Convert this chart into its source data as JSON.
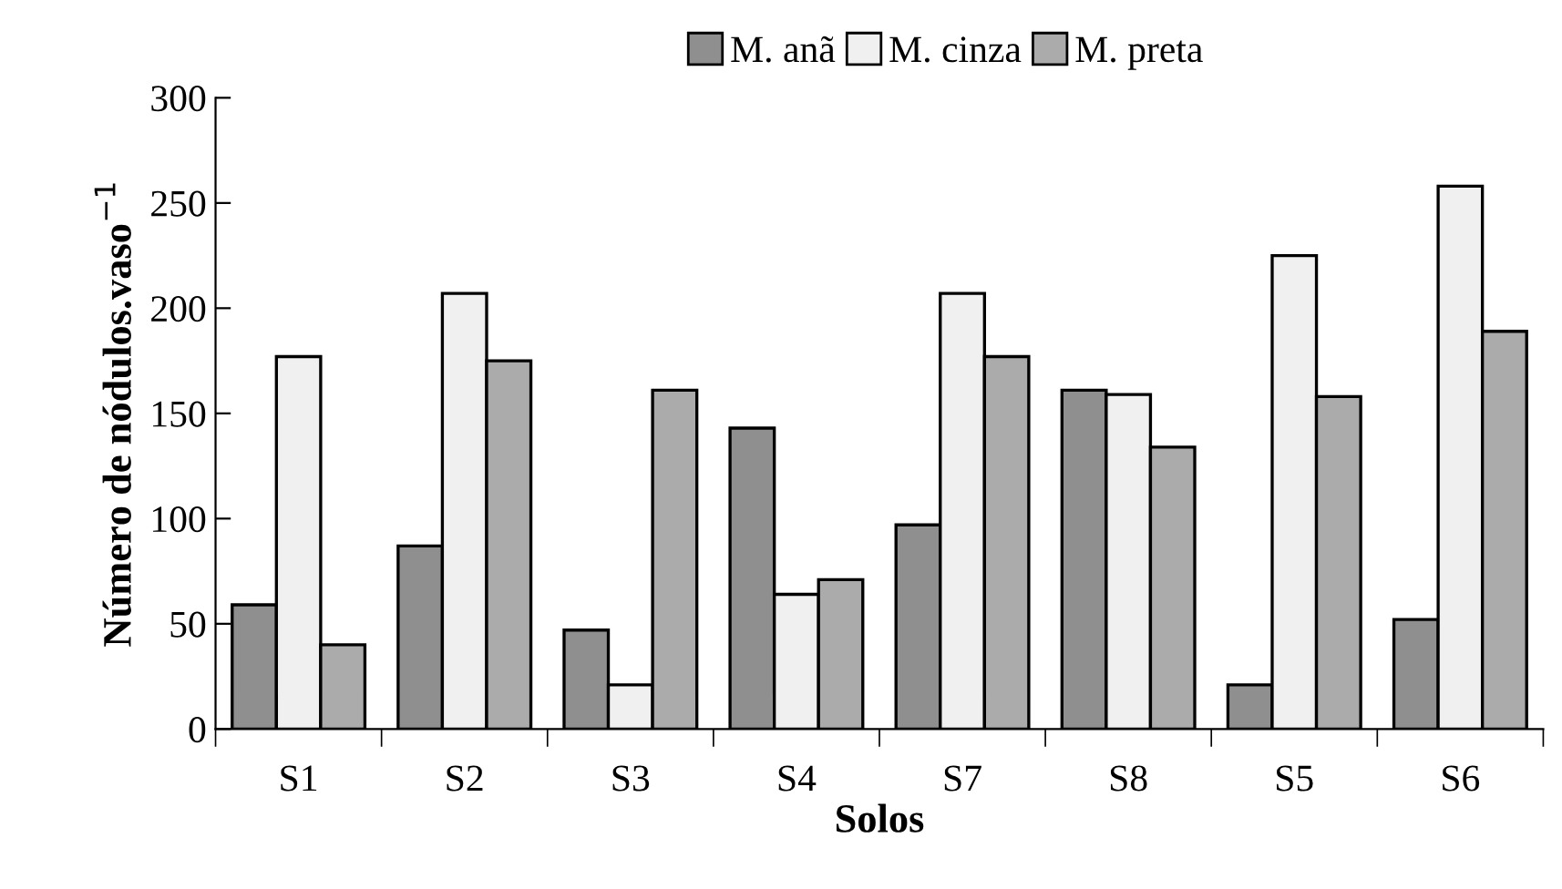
{
  "chart_data": {
    "type": "bar",
    "xlabel": "Solos",
    "ylabel": "Número de nódulos.vaso$^{−1}$",
    "categories": [
      "S1",
      "S2",
      "S3",
      "S4",
      "S7",
      "S8",
      "S5",
      "S6"
    ],
    "series": [
      {
        "name": "M. anã",
        "color": "#8f8f8f",
        "values": [
          59,
          87,
          47,
          143,
          97,
          161,
          21,
          52
        ]
      },
      {
        "name": "M. cinza",
        "color": "#f0f0f0",
        "values": [
          177,
          207,
          21,
          64,
          207,
          159,
          225,
          258
        ]
      },
      {
        "name": "M. preta",
        "color": "#ababab",
        "values": [
          40,
          175,
          161,
          71,
          177,
          134,
          158,
          189
        ]
      }
    ],
    "ylim": [
      0,
      300
    ],
    "yticks": [
      0,
      50,
      100,
      150,
      200,
      250,
      300
    ],
    "grid": false,
    "legend": "top"
  }
}
